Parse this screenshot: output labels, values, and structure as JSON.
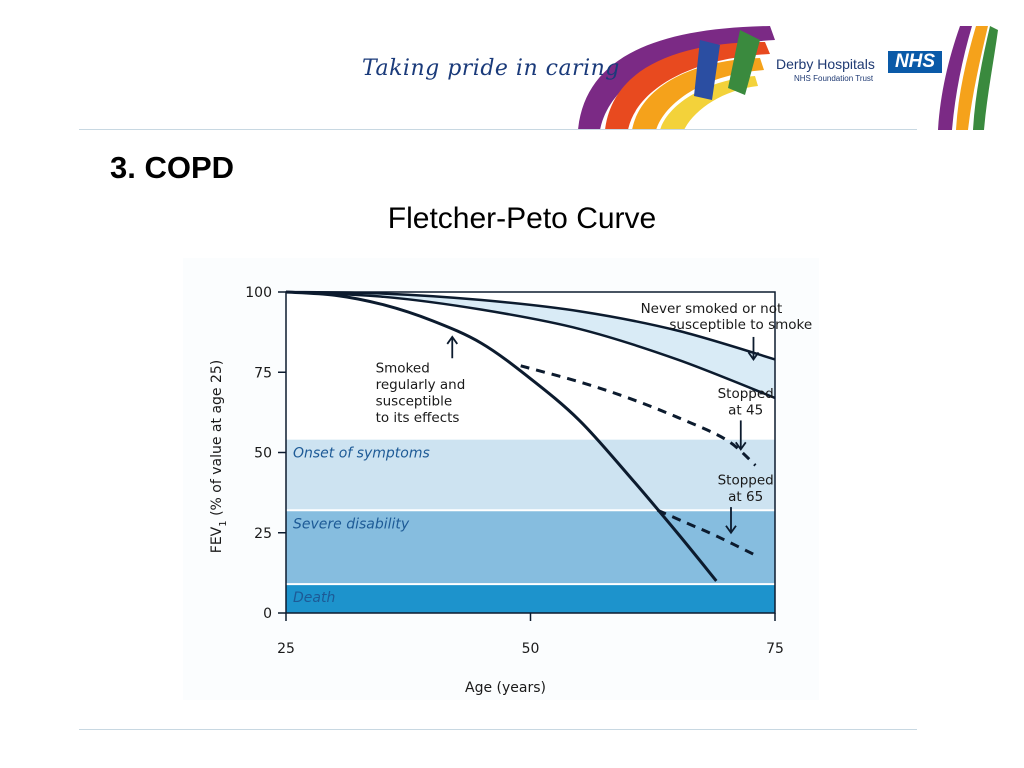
{
  "header": {
    "tagline": "Taking pride in caring",
    "org_name": "Derby Hospitals",
    "org_trust": "NHS Foundation Trust",
    "nhs_badge": "NHS"
  },
  "slide": {
    "title": "3. COPD"
  },
  "colors": {
    "band_normal": "#d9ebf6",
    "zone_symptoms": "#cde3f1",
    "zone_disability": "#86bddf",
    "zone_death": "#1d93cc",
    "line": "#0c1b2e"
  },
  "chart_data": {
    "type": "line",
    "title": "Fletcher-Peto Curve",
    "xlabel": "Age (years)",
    "ylabel_main": "FEV",
    "ylabel_sub": "1",
    "ylabel_rest": " (% of value at age 25)",
    "xlim": [
      25,
      75
    ],
    "ylim": [
      0,
      100
    ],
    "x_ticks": [
      25,
      50,
      75
    ],
    "y_ticks": [
      0,
      25,
      50,
      75,
      100
    ],
    "zones": [
      {
        "label": "Onset of symptoms",
        "y_from": 32,
        "y_to": 54
      },
      {
        "label": "Severe disability",
        "y_from": 9,
        "y_to": 32
      },
      {
        "label": "Death",
        "y_from": 0,
        "y_to": 9
      }
    ],
    "normal_band": {
      "label_line1": "Never smoked or not",
      "label_line2": "susceptible to smoke",
      "upper": {
        "x": [
          25,
          35,
          45,
          55,
          65,
          75
        ],
        "y": [
          100,
          99.5,
          97.5,
          94,
          88,
          79
        ]
      },
      "lower": {
        "x": [
          25,
          35,
          45,
          55,
          65,
          75
        ],
        "y": [
          100,
          98.5,
          94.5,
          88.5,
          79,
          67
        ]
      }
    },
    "series": [
      {
        "name": "Smoked regularly and susceptible to its effects",
        "style": "solid",
        "x": [
          25,
          30,
          35,
          40,
          45,
          50,
          55,
          60,
          65,
          69
        ],
        "y": [
          100,
          99,
          96,
          91,
          84,
          73,
          60,
          43,
          25,
          10
        ]
      },
      {
        "name": "Stopped at 45",
        "style": "dashed",
        "x": [
          49,
          55,
          60,
          65,
          70,
          73
        ],
        "y": [
          77,
          72,
          67,
          61,
          54,
          46
        ]
      },
      {
        "name": "Stopped at 65",
        "style": "dashed",
        "x": [
          63,
          66,
          69,
          73
        ],
        "y": [
          32,
          28,
          24,
          18
        ]
      }
    ],
    "annotations": [
      {
        "lines": [
          "Smoked",
          "regularly and",
          "susceptible",
          "to its effects"
        ],
        "x": 36,
        "y": 75,
        "arrow_to": {
          "x": 42,
          "y": 86
        }
      },
      {
        "lines": [
          "Stopped",
          "at 45"
        ],
        "x": 72,
        "y": 67,
        "arrow_to": {
          "x": 71.5,
          "y": 51
        }
      },
      {
        "lines": [
          "Stopped",
          "at 65"
        ],
        "x": 72,
        "y": 40,
        "arrow_to": {
          "x": 70.5,
          "y": 25
        }
      }
    ]
  }
}
